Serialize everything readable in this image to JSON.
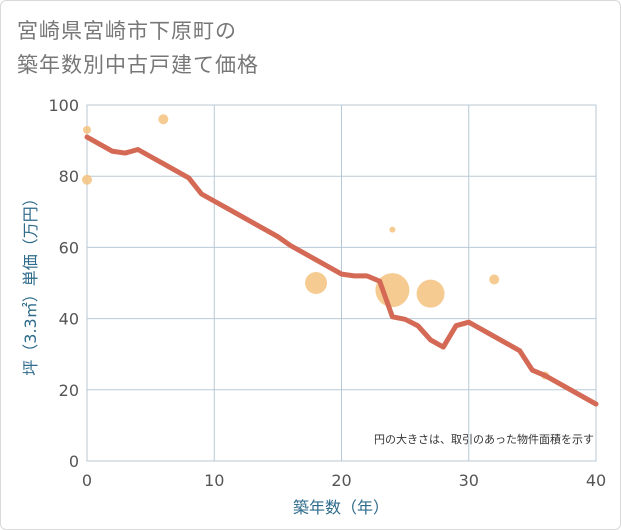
{
  "title_line1": "宮崎県宮崎市下原町の",
  "title_line2": "築年数別中古戸建て価格",
  "chart_data": {
    "type": "scatter",
    "title": "宮崎県宮崎市下原町の築年数別中古戸建て価格",
    "xlabel": "築年数（年）",
    "ylabel": "坪（3.3㎡）単価（万円）",
    "note": "円の大きさは、取引のあった物件面積を示す",
    "xlim": [
      0,
      40
    ],
    "ylim": [
      0,
      100
    ],
    "xticks": [
      0,
      10,
      20,
      30,
      40
    ],
    "yticks": [
      0,
      20,
      40,
      60,
      80,
      100
    ],
    "grid": true,
    "colors": {
      "line": "#d46a55",
      "bubble": "#f5c27e",
      "grid": "#b8c9d6"
    },
    "scatter_points": [
      {
        "x": 0,
        "y": 93,
        "size": 4
      },
      {
        "x": 0,
        "y": 79,
        "size": 5
      },
      {
        "x": 6,
        "y": 96,
        "size": 5
      },
      {
        "x": 18,
        "y": 50,
        "size": 11
      },
      {
        "x": 24,
        "y": 65,
        "size": 3
      },
      {
        "x": 24,
        "y": 48,
        "size": 17
      },
      {
        "x": 27,
        "y": 47,
        "size": 14
      },
      {
        "x": 32,
        "y": 51,
        "size": 5
      },
      {
        "x": 36,
        "y": 24,
        "size": 4
      }
    ],
    "line_series": {
      "name": "トレンド",
      "x": [
        0,
        1,
        2,
        3,
        4,
        5,
        6,
        7,
        8,
        9,
        10,
        11,
        12,
        13,
        14,
        15,
        16,
        17,
        18,
        19,
        20,
        21,
        22,
        23,
        24,
        25,
        26,
        27,
        28,
        29,
        30,
        31,
        32,
        33,
        34,
        35,
        36,
        37,
        38,
        39,
        40
      ],
      "y": [
        91,
        89,
        87,
        86.5,
        87.5,
        85.5,
        83.5,
        81.5,
        79.5,
        75,
        73,
        71,
        69,
        67,
        65,
        63,
        60.5,
        58.5,
        56.5,
        54.5,
        52.5,
        52,
        52,
        50.5,
        40.5,
        39.8,
        38,
        34,
        32,
        38,
        39,
        37,
        35,
        33,
        31,
        25.5,
        24,
        22,
        20,
        18,
        16
      ]
    }
  }
}
